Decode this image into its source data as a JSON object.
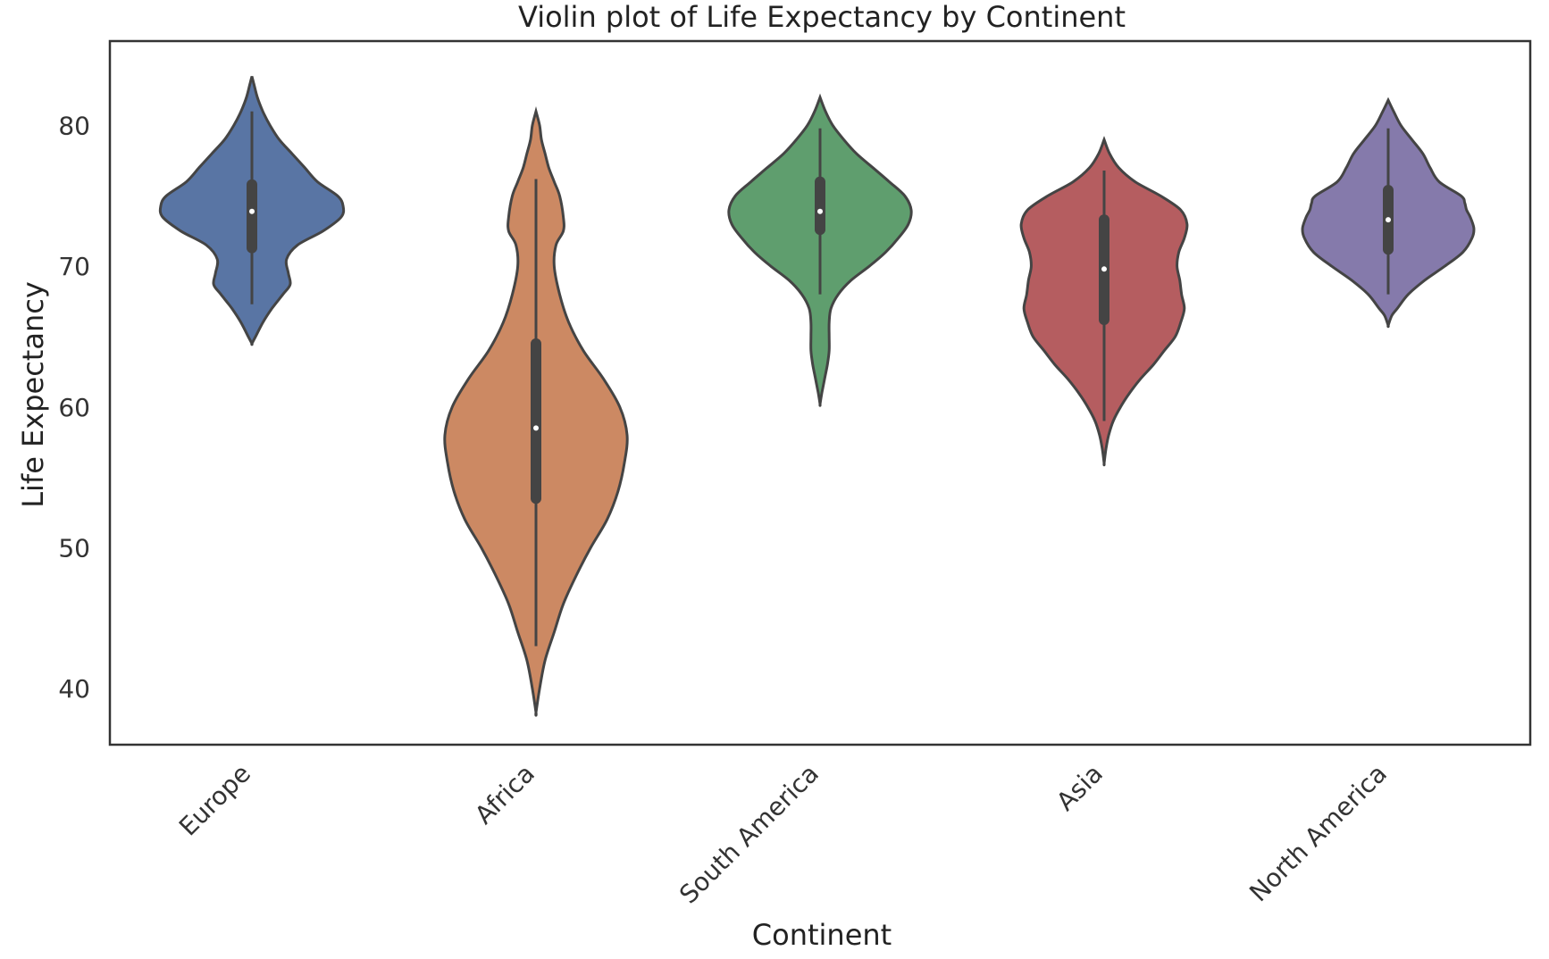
{
  "chart_data": {
    "type": "violin",
    "title": "Violin plot of Life Expectancy by Continent",
    "xlabel": "Continent",
    "ylabel": "Life Expectancy",
    "ylim": [
      36,
      86
    ],
    "yticks": [
      40,
      50,
      60,
      70,
      80
    ],
    "grid": false,
    "categories": [
      "Europe",
      "Africa",
      "South America",
      "Asia",
      "North America"
    ],
    "series": [
      {
        "category": "Europe",
        "color": "#5975a4",
        "min": 67.3,
        "q1": 71.3,
        "median": 73.9,
        "q3": 75.8,
        "max": 81.0,
        "density": [
          [
            64.5,
            0.0
          ],
          [
            65,
            0.04
          ],
          [
            66,
            0.12
          ],
          [
            67,
            0.22
          ],
          [
            68,
            0.34
          ],
          [
            68.7,
            0.42
          ],
          [
            69.5,
            0.4
          ],
          [
            70.5,
            0.38
          ],
          [
            71.5,
            0.5
          ],
          [
            72.5,
            0.78
          ],
          [
            73.5,
            0.98
          ],
          [
            74.3,
            1.0
          ],
          [
            75,
            0.94
          ],
          [
            76,
            0.72
          ],
          [
            77,
            0.58
          ],
          [
            78,
            0.44
          ],
          [
            79,
            0.3
          ],
          [
            80,
            0.2
          ],
          [
            81,
            0.12
          ],
          [
            82,
            0.06
          ],
          [
            83,
            0.02
          ],
          [
            83.5,
            0.0
          ]
        ]
      },
      {
        "category": "Africa",
        "color": "#cc8963",
        "min": 43.0,
        "q1": 53.5,
        "median": 58.5,
        "q3": 64.5,
        "max": 76.2,
        "density": [
          [
            38.3,
            0.0
          ],
          [
            40,
            0.04
          ],
          [
            42,
            0.1
          ],
          [
            44,
            0.2
          ],
          [
            46,
            0.3
          ],
          [
            48,
            0.44
          ],
          [
            50,
            0.6
          ],
          [
            52,
            0.78
          ],
          [
            54,
            0.9
          ],
          [
            56,
            0.97
          ],
          [
            58,
            1.0
          ],
          [
            60,
            0.92
          ],
          [
            62,
            0.74
          ],
          [
            64,
            0.52
          ],
          [
            66,
            0.36
          ],
          [
            68,
            0.26
          ],
          [
            70,
            0.2
          ],
          [
            71.5,
            0.22
          ],
          [
            72.5,
            0.3
          ],
          [
            73.5,
            0.3
          ],
          [
            75,
            0.26
          ],
          [
            76,
            0.2
          ],
          [
            77,
            0.14
          ],
          [
            78,
            0.1
          ],
          [
            79,
            0.06
          ],
          [
            80,
            0.04
          ],
          [
            81,
            0.0
          ]
        ]
      },
      {
        "category": "South America",
        "color": "#5f9e6e",
        "min": 68.0,
        "q1": 72.6,
        "median": 73.9,
        "q3": 76.0,
        "max": 79.8,
        "density": [
          [
            60.2,
            0.0
          ],
          [
            61,
            0.02
          ],
          [
            62,
            0.05
          ],
          [
            63,
            0.08
          ],
          [
            64,
            0.1
          ],
          [
            65,
            0.1
          ],
          [
            66,
            0.1
          ],
          [
            67,
            0.12
          ],
          [
            68,
            0.2
          ],
          [
            69,
            0.34
          ],
          [
            70,
            0.54
          ],
          [
            71,
            0.72
          ],
          [
            72,
            0.86
          ],
          [
            73,
            0.97
          ],
          [
            74,
            1.0
          ],
          [
            75,
            0.93
          ],
          [
            76,
            0.76
          ],
          [
            77,
            0.58
          ],
          [
            78,
            0.4
          ],
          [
            79,
            0.26
          ],
          [
            80,
            0.14
          ],
          [
            81,
            0.06
          ],
          [
            82,
            0.0
          ]
        ]
      },
      {
        "category": "Asia",
        "color": "#b55d60",
        "min": 59.0,
        "q1": 66.2,
        "median": 69.8,
        "q3": 73.3,
        "max": 76.8,
        "density": [
          [
            56,
            0.0
          ],
          [
            57,
            0.02
          ],
          [
            58,
            0.05
          ],
          [
            59,
            0.1
          ],
          [
            60,
            0.18
          ],
          [
            61,
            0.28
          ],
          [
            62,
            0.4
          ],
          [
            63,
            0.54
          ],
          [
            64,
            0.66
          ],
          [
            65,
            0.78
          ],
          [
            66,
            0.84
          ],
          [
            67,
            0.88
          ],
          [
            68,
            0.85
          ],
          [
            69,
            0.83
          ],
          [
            70,
            0.8
          ],
          [
            71,
            0.82
          ],
          [
            72,
            0.88
          ],
          [
            73,
            0.91
          ],
          [
            74,
            0.84
          ],
          [
            75,
            0.62
          ],
          [
            76,
            0.34
          ],
          [
            77,
            0.16
          ],
          [
            78,
            0.06
          ],
          [
            79,
            0.0
          ]
        ]
      },
      {
        "category": "North America",
        "color": "#857aab",
        "min": 68.0,
        "q1": 71.2,
        "median": 73.3,
        "q3": 75.4,
        "max": 79.8,
        "density": [
          [
            65.8,
            0.0
          ],
          [
            66.5,
            0.04
          ],
          [
            67,
            0.1
          ],
          [
            68,
            0.22
          ],
          [
            69,
            0.4
          ],
          [
            70,
            0.62
          ],
          [
            71,
            0.82
          ],
          [
            72,
            0.92
          ],
          [
            72.7,
            0.94
          ],
          [
            73.5,
            0.9
          ],
          [
            74,
            0.86
          ],
          [
            74.5,
            0.84
          ],
          [
            75,
            0.8
          ],
          [
            76,
            0.56
          ],
          [
            77,
            0.46
          ],
          [
            78,
            0.38
          ],
          [
            79,
            0.26
          ],
          [
            80,
            0.14
          ],
          [
            81,
            0.06
          ],
          [
            81.8,
            0.0
          ]
        ]
      }
    ]
  }
}
